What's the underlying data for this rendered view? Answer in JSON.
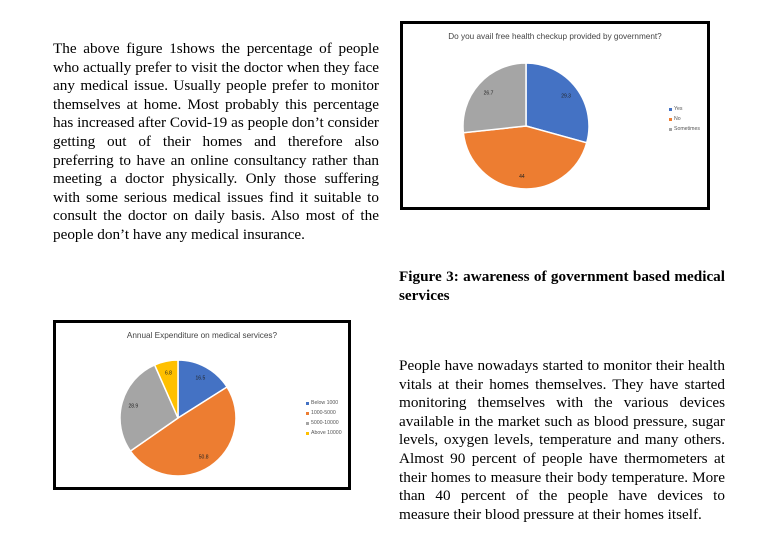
{
  "left_paragraph": "The above figure 1shows the percentage of people who actually prefer to visit the doctor when they face any medical issue. Usually people prefer to monitor themselves at home. Most probably this percentage has increased after Covid-19 as people don’t consider getting out of their homes and therefore also preferring to have an online consultancy rather than meeting a doctor physically. Only those suffering with some serious medical issues find it suitable to consult the doctor on daily basis. Also most of the people don’t have any medical insurance.",
  "caption": "Figure 3: awareness of government based medical services",
  "right_paragraph": "People have nowadays started to monitor their health vitals at their homes themselves. They have started monitoring themselves with the various devices available in the market such as blood pressure, sugar levels, oxygen levels, temperature and many others. Almost 90 percent of people have thermometers at their homes to measure their body temperature. More than 40 percent of the people have devices to measure their blood pressure at their homes itself.",
  "chart_data": [
    {
      "type": "pie",
      "title": "Do you avail free health checkup provided by government?",
      "categories": [
        "Yes",
        "No",
        "Sometimes"
      ],
      "values": [
        29.3,
        44,
        26.7
      ],
      "value_labels": [
        "29.3",
        "44",
        "26.7"
      ],
      "colors": [
        "#4472C4",
        "#ED7D31",
        "#A5A5A5"
      ],
      "legend_position": "right"
    },
    {
      "type": "pie",
      "title": "Annual Expenditure on medical services?",
      "categories": [
        "Below 1000",
        "1000-5000",
        "5000-10000",
        "Above 10000"
      ],
      "values": [
        16.5,
        50.8,
        28.9,
        6.8
      ],
      "value_labels": [
        "16.5",
        "50.8",
        "28.9",
        "6.8"
      ],
      "colors": [
        "#4472C4",
        "#ED7D31",
        "#A5A5A5",
        "#FFC000"
      ],
      "legend_position": "right"
    }
  ]
}
